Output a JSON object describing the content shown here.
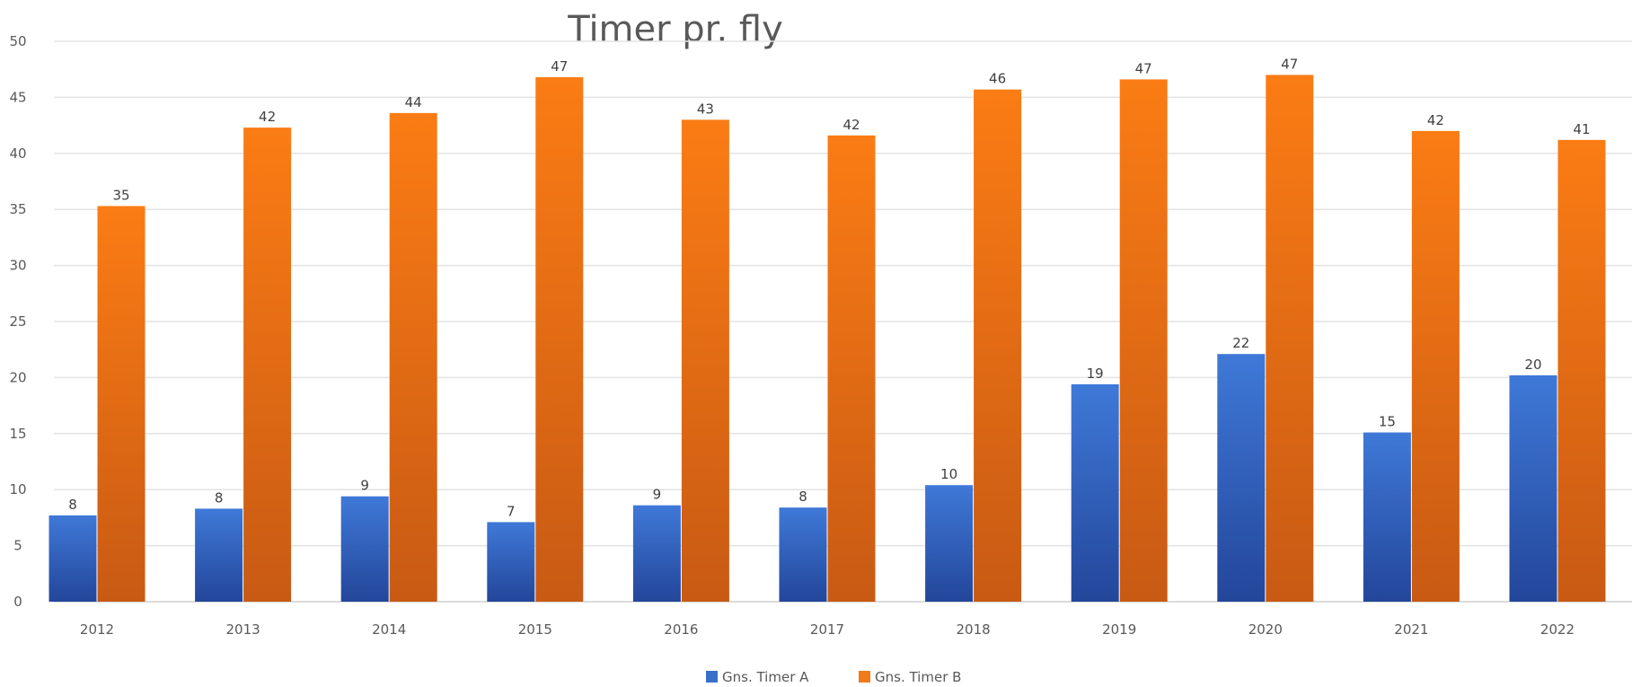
{
  "chart_data": {
    "type": "bar",
    "title": "Timer pr. fly",
    "xlabel": "",
    "ylabel": "",
    "categories": [
      "2012",
      "2013",
      "2014",
      "2015",
      "2016",
      "2017",
      "2018",
      "2019",
      "2020",
      "2021",
      "2022"
    ],
    "ylim": [
      0,
      50
    ],
    "yticks": [
      0,
      5,
      10,
      15,
      20,
      25,
      30,
      35,
      40,
      45,
      50
    ],
    "grid": true,
    "legend_position": "bottom",
    "series": [
      {
        "name": "Gns. Timer A",
        "color": "#3a6fc8",
        "values": [
          7.7,
          8.3,
          9.4,
          7.1,
          8.6,
          8.4,
          10.4,
          19.4,
          22.1,
          15.1,
          20.2
        ],
        "labels": [
          "8",
          "8",
          "9",
          "7",
          "9",
          "8",
          "10",
          "19",
          "22",
          "15",
          "20"
        ]
      },
      {
        "name": "Gns. Timer B",
        "color": "#f07a1a",
        "values": [
          35.3,
          42.3,
          43.6,
          46.8,
          43.0,
          41.6,
          45.7,
          46.6,
          47.0,
          42.0,
          41.2
        ],
        "labels": [
          "35",
          "42",
          "44",
          "47",
          "43",
          "42",
          "46",
          "47",
          "47",
          "42",
          "41"
        ]
      }
    ]
  }
}
